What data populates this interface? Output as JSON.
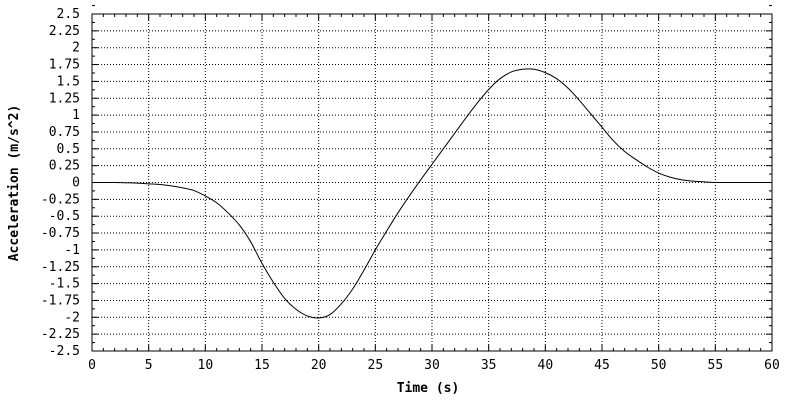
{
  "chart_data": {
    "type": "line",
    "title": "",
    "xlabel": "Time (s)",
    "ylabel": "Acceleration (m/s^2)",
    "xlim": [
      0,
      60
    ],
    "ylim": [
      -2.5,
      2.5
    ],
    "xticks": [
      "0",
      "5",
      "10",
      "15",
      "20",
      "25",
      "30",
      "35",
      "40",
      "45",
      "50",
      "55",
      "60"
    ],
    "yticks": [
      "2.5",
      "2.25",
      "2",
      "1.75",
      "1.5",
      "1.25",
      "1",
      "0.75",
      "0.5",
      "0.25",
      "0",
      "-0.25",
      "-0.5",
      "-0.75",
      "-1",
      "-1.25",
      "-1.5",
      "-1.75",
      "-2",
      "-2.25",
      "-2.5"
    ],
    "grid": true,
    "line_color": "#000000",
    "series": [
      {
        "x": [
          0,
          2,
          4,
          5,
          6,
          7,
          8,
          9,
          10,
          11,
          12,
          13,
          14,
          15,
          16,
          17,
          18,
          19,
          20,
          21,
          22,
          23,
          24,
          25,
          26,
          27,
          28,
          29,
          30,
          31,
          32,
          33,
          34,
          35,
          36,
          37,
          38,
          39,
          40,
          41,
          42,
          43,
          44,
          45,
          46,
          47,
          48,
          49,
          50,
          51,
          52,
          53,
          54,
          55,
          56,
          58,
          60
        ],
        "y": [
          0,
          0,
          -0.01,
          -0.02,
          -0.03,
          -0.05,
          -0.08,
          -0.12,
          -0.2,
          -0.3,
          -0.45,
          -0.63,
          -0.88,
          -1.2,
          -1.48,
          -1.72,
          -1.88,
          -1.98,
          -2.01,
          -1.96,
          -1.8,
          -1.58,
          -1.3,
          -1.0,
          -0.72,
          -0.45,
          -0.2,
          0.04,
          0.27,
          0.5,
          0.73,
          0.96,
          1.18,
          1.38,
          1.54,
          1.64,
          1.68,
          1.68,
          1.63,
          1.54,
          1.4,
          1.22,
          1.02,
          0.82,
          0.62,
          0.46,
          0.34,
          0.23,
          0.14,
          0.08,
          0.04,
          0.02,
          0.01,
          0,
          0,
          0,
          0
        ]
      }
    ]
  }
}
